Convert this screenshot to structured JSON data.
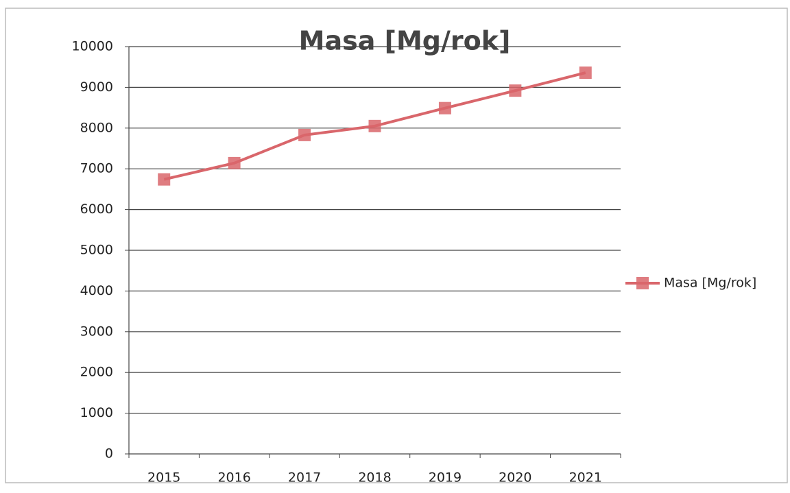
{
  "chart_data": {
    "type": "line",
    "title": "Masa [Mg/rok]",
    "categories": [
      "2015",
      "2016",
      "2017",
      "2018",
      "2019",
      "2020",
      "2021"
    ],
    "series": [
      {
        "name": "Masa [Mg/rok]",
        "color": "#d9666b",
        "values": [
          6740,
          7140,
          7830,
          8050,
          8490,
          8920,
          9360
        ]
      }
    ],
    "ylim": [
      0,
      10000
    ],
    "yticks": [
      0,
      1000,
      2000,
      3000,
      4000,
      5000,
      6000,
      7000,
      8000,
      9000,
      10000
    ],
    "grid": true,
    "legend": "right"
  }
}
